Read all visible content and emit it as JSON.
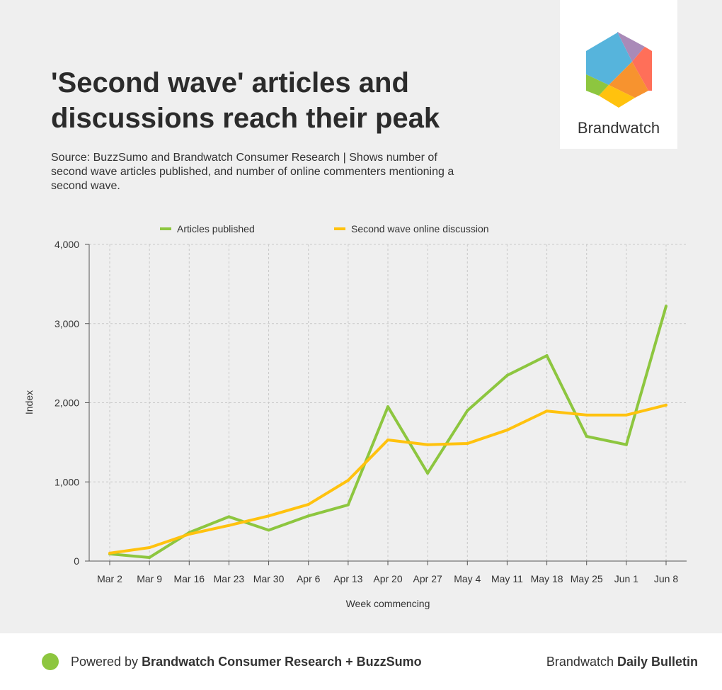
{
  "header": {
    "title": "'Second wave' articles and discussions reach their peak",
    "subtitle": "Source: BuzzSumo and Brandwatch Consumer Research | Shows number of second wave articles published, and number of online commenters mentioning a second wave.",
    "logo_text": "Brandwatch"
  },
  "footer": {
    "powered_prefix": "Powered by ",
    "powered_bold": "Brandwatch Consumer Research + BuzzSumo",
    "bulletin_prefix": "Brandwatch ",
    "bulletin_bold": "Daily Bulletin",
    "dot_color": "#8dc63f"
  },
  "chart_data": {
    "type": "line",
    "xlabel": "Week commencing",
    "ylabel": "Index",
    "ylim": [
      0,
      4000
    ],
    "yticks": [
      0,
      1000,
      2000,
      3000,
      4000
    ],
    "ytick_labels": [
      "0",
      "1,000",
      "2,000",
      "3,000",
      "4,000"
    ],
    "legend_position": "top-center",
    "grid": true,
    "categories": [
      "Mar 2",
      "Mar 9",
      "Mar 16",
      "Mar 23",
      "Mar 30",
      "Apr 6",
      "Apr 13",
      "Apr 20",
      "Apr 27",
      "May 4",
      "May 11",
      "May 18",
      "May 25",
      "Jun 1",
      "Jun 8"
    ],
    "series": [
      {
        "name": "Articles published",
        "color": "#8dc63f",
        "values": [
          90,
          45,
          360,
          560,
          390,
          570,
          710,
          1950,
          1110,
          1900,
          2345,
          2595,
          1575,
          1470,
          3220
        ]
      },
      {
        "name": "Second wave online discussion",
        "color": "#ffc20e",
        "values": [
          100,
          170,
          340,
          450,
          570,
          715,
          1020,
          1530,
          1470,
          1485,
          1655,
          1895,
          1845,
          1845,
          1970
        ]
      }
    ]
  }
}
